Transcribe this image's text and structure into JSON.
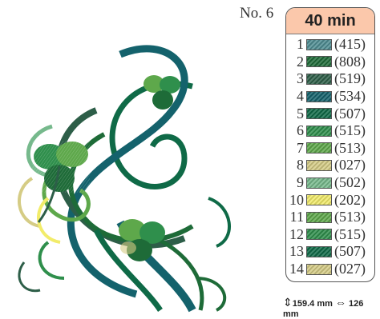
{
  "design": {
    "number_label": "No. 6",
    "time": "40 min",
    "height": "159.4 mm",
    "width": "126 mm"
  },
  "colors": [
    {
      "index": "1",
      "code": "(415)",
      "hex": "#4f8d93"
    },
    {
      "index": "2",
      "code": "(808)",
      "hex": "#1e6b38"
    },
    {
      "index": "3",
      "code": "(519)",
      "hex": "#2d5e48"
    },
    {
      "index": "4",
      "code": "(534)",
      "hex": "#14626c"
    },
    {
      "index": "5",
      "code": "(507)",
      "hex": "#0f6a47"
    },
    {
      "index": "6",
      "code": "(515)",
      "hex": "#2f8f4c"
    },
    {
      "index": "7",
      "code": "(513)",
      "hex": "#5ea84b"
    },
    {
      "index": "8",
      "code": "(027)",
      "hex": "#d5cc85"
    },
    {
      "index": "9",
      "code": "(502)",
      "hex": "#76b98c"
    },
    {
      "index": "10",
      "code": "(202)",
      "hex": "#f2ec6a"
    },
    {
      "index": "11",
      "code": "(513)",
      "hex": "#5ea84b"
    },
    {
      "index": "12",
      "code": "(515)",
      "hex": "#2f8f4c"
    },
    {
      "index": "13",
      "code": "(507)",
      "hex": "#0f6a47"
    },
    {
      "index": "14",
      "code": "(027)",
      "hex": "#d5cc85"
    }
  ],
  "icons": {
    "height": "vertical-arrows-icon",
    "width": "horizontal-arrows-icon"
  }
}
